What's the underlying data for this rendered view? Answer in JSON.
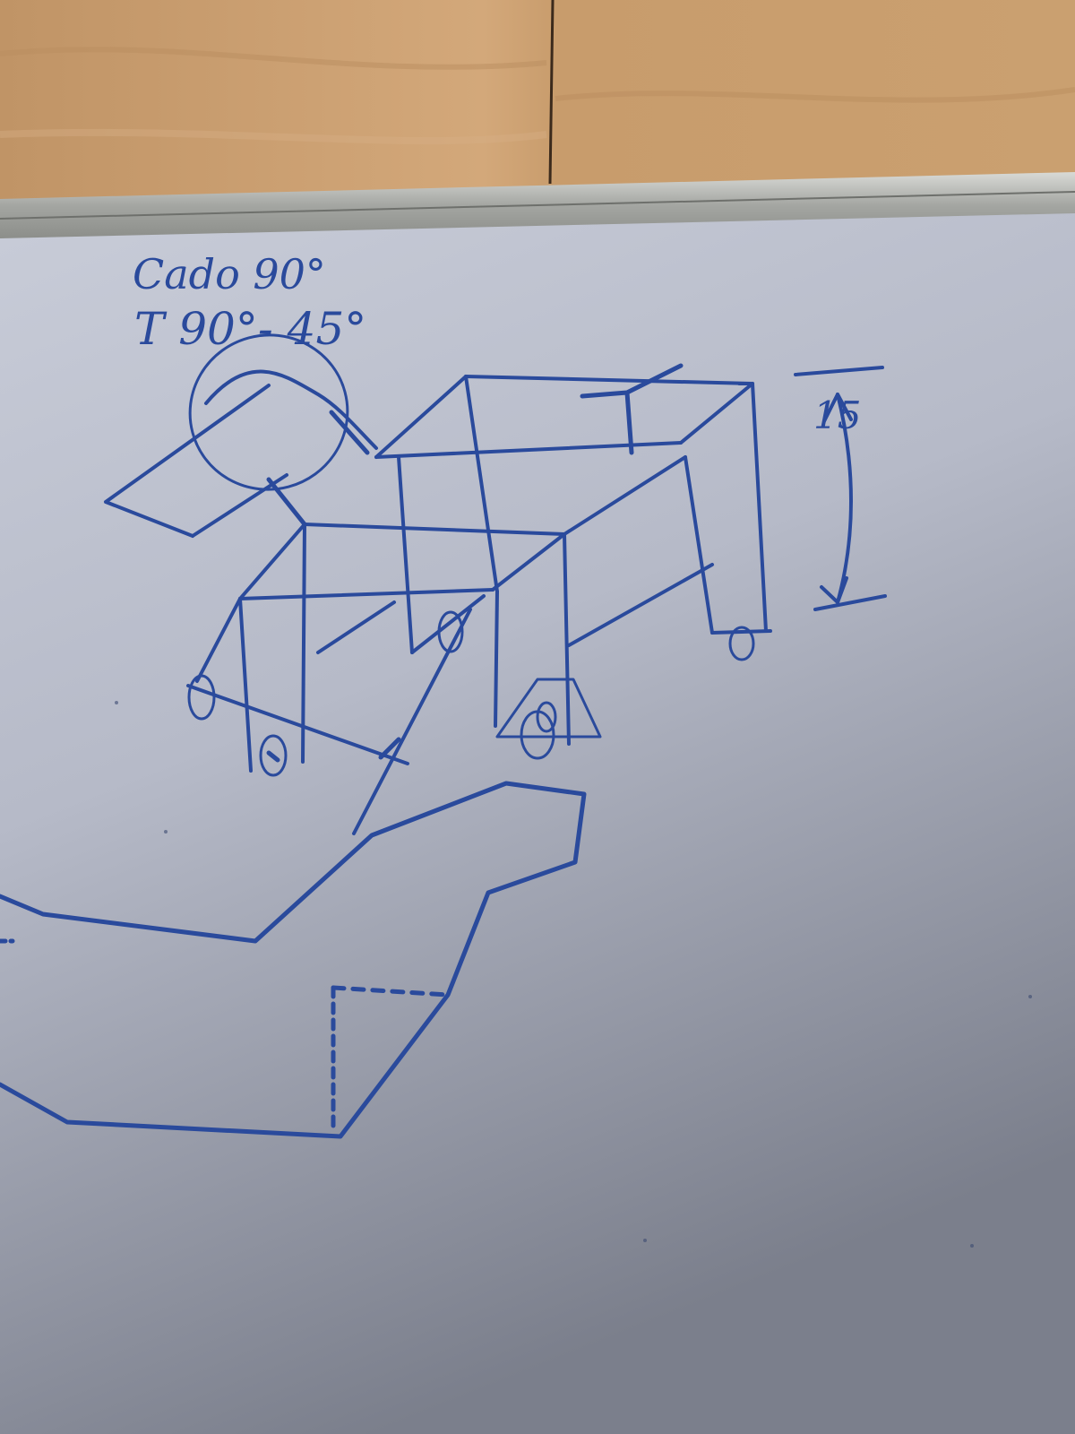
{
  "board": {
    "note_line_1": "Cado 90°",
    "note_line_2": "T 90°- 45°",
    "dimension_label": "15"
  },
  "colors": {
    "ink": "#2a4a9c",
    "wall": "#c59a6a",
    "board": "#b8bccb",
    "frame": "#a8aaa8"
  }
}
